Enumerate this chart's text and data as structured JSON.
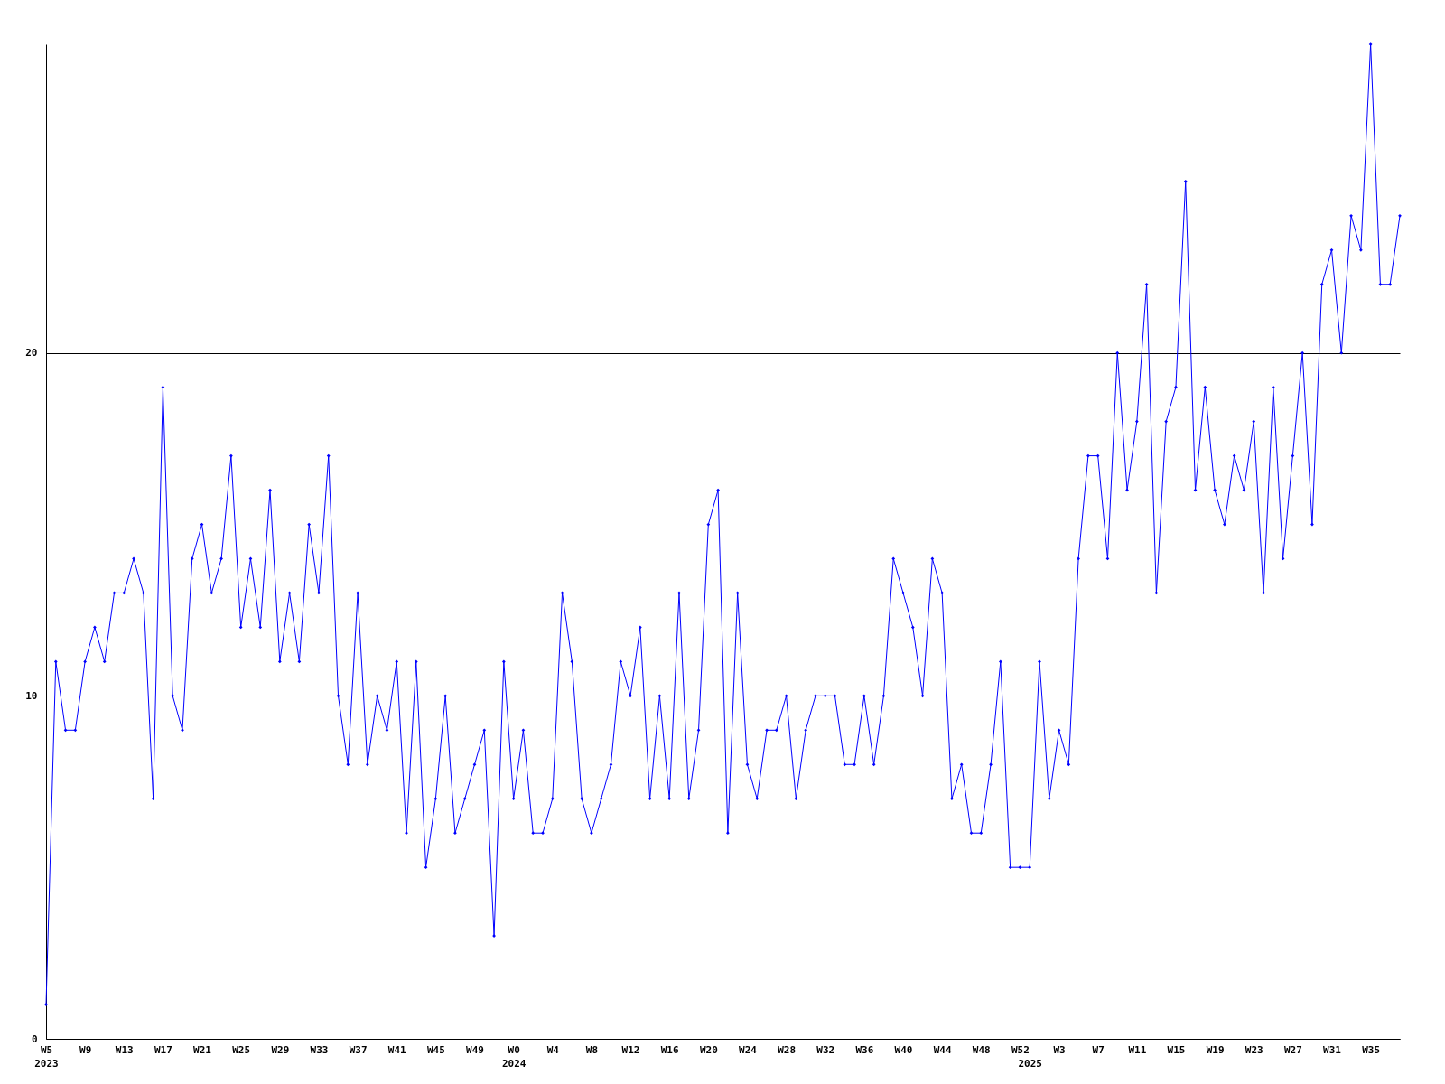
{
  "chart_data": {
    "type": "line",
    "categories": [
      "W5\n2023",
      null,
      null,
      null,
      "W9",
      null,
      null,
      null,
      "W13",
      null,
      null,
      null,
      "W17",
      null,
      null,
      null,
      "W21",
      null,
      null,
      null,
      "W25",
      null,
      null,
      null,
      "W29",
      null,
      null,
      null,
      "W33",
      null,
      null,
      null,
      "W37",
      null,
      null,
      null,
      "W41",
      null,
      null,
      null,
      "W45",
      null,
      null,
      null,
      "W49",
      null,
      null,
      null,
      "W0\n2024",
      null,
      null,
      null,
      "W4",
      null,
      null,
      null,
      "W8",
      null,
      null,
      null,
      "W12",
      null,
      null,
      null,
      "W16",
      null,
      null,
      null,
      "W20",
      null,
      null,
      null,
      "W24",
      null,
      null,
      null,
      "W28",
      null,
      null,
      null,
      "W32",
      null,
      null,
      null,
      "W36",
      null,
      null,
      null,
      "W40",
      null,
      null,
      null,
      "W44",
      null,
      null,
      null,
      "W48",
      null,
      null,
      null,
      "W52",
      "\n2025",
      null,
      null,
      "W3",
      null,
      null,
      null,
      "W7",
      null,
      null,
      null,
      "W11",
      null,
      null,
      null,
      "W15",
      null,
      null,
      null,
      "W19",
      null,
      null,
      null,
      "W23",
      null,
      null,
      null,
      "W27",
      null,
      null,
      null,
      "W31",
      null,
      null,
      null,
      "W35",
      null,
      null,
      null
    ],
    "series": [
      {
        "color": "#0000ff",
        "values": [
          1,
          11,
          9,
          9,
          11,
          12,
          11,
          13,
          13,
          14,
          13,
          7,
          19,
          10,
          9,
          14,
          15,
          13,
          14,
          17,
          12,
          14,
          12,
          16,
          11,
          13,
          11,
          15,
          13,
          17,
          10,
          8,
          13,
          8,
          10,
          9,
          11,
          6,
          11,
          5,
          7,
          10,
          6,
          7,
          8,
          9,
          3,
          11,
          7,
          9,
          6,
          6,
          7,
          13,
          11,
          7,
          6,
          7,
          8,
          11,
          10,
          12,
          7,
          10,
          7,
          13,
          7,
          9,
          15,
          16,
          6,
          13,
          8,
          7,
          9,
          9,
          10,
          7,
          9,
          10,
          10,
          10,
          8,
          8,
          10,
          8,
          10,
          14,
          13,
          12,
          10,
          14,
          13,
          7,
          8,
          6,
          6,
          8,
          11,
          5,
          5,
          5,
          11,
          7,
          9,
          8,
          14,
          17,
          17,
          14,
          20,
          16,
          18,
          22,
          13,
          18,
          19,
          25,
          16,
          19,
          16,
          15,
          17,
          16,
          18,
          13,
          19,
          14,
          17,
          20,
          15,
          22,
          23,
          20,
          24,
          23,
          29,
          22,
          22,
          24
        ]
      }
    ],
    "ylim": [
      0,
      29
    ],
    "yticks": [
      0,
      10,
      20
    ],
    "grid": "y",
    "marker": "diamond",
    "line_style": "solid"
  }
}
